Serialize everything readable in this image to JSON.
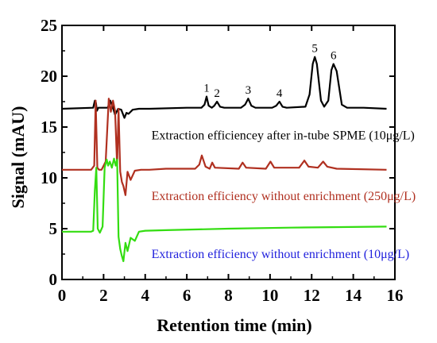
{
  "chart_data": {
    "type": "line",
    "xlabel": "Retention time (min)",
    "ylabel": "Signal (mAU)",
    "xlim": [
      0,
      16
    ],
    "ylim": [
      0,
      25
    ],
    "x_ticks": [
      0,
      2,
      4,
      6,
      8,
      10,
      12,
      14,
      16
    ],
    "y_ticks": [
      0,
      5,
      10,
      15,
      20,
      25
    ],
    "grid": false,
    "legend": "none",
    "series": [
      {
        "color": "#000000",
        "x": [
          0,
          1.5,
          1.58,
          1.63,
          1.68,
          1.75,
          1.85,
          2.0,
          2.2,
          2.32,
          2.45,
          2.55,
          2.7,
          2.85,
          3.0,
          3.1,
          3.2,
          3.4,
          3.7,
          4.2,
          6.0,
          6.7,
          6.85,
          6.95,
          7.05,
          7.2,
          7.32,
          7.45,
          7.6,
          7.8,
          8.6,
          8.8,
          8.95,
          9.1,
          9.3,
          10.1,
          10.3,
          10.45,
          10.6,
          10.8,
          11.7,
          11.9,
          12.05,
          12.15,
          12.25,
          12.45,
          12.6,
          12.8,
          12.95,
          13.05,
          13.2,
          13.45,
          13.7,
          14.5,
          15.6
        ],
        "y": [
          16.8,
          16.9,
          17.6,
          17.4,
          16.6,
          16.9,
          16.9,
          16.9,
          16.9,
          17.6,
          16.9,
          16.2,
          16.8,
          16.7,
          15.9,
          16.4,
          16.3,
          16.7,
          16.8,
          16.8,
          16.9,
          16.9,
          17.2,
          18.0,
          17.1,
          16.9,
          17.1,
          17.5,
          17.0,
          16.9,
          16.9,
          17.2,
          17.8,
          17.1,
          16.9,
          16.9,
          17.1,
          17.5,
          17.0,
          16.9,
          17.0,
          18.2,
          21.2,
          21.9,
          21.2,
          17.6,
          17.0,
          17.6,
          20.6,
          21.2,
          20.5,
          17.2,
          16.9,
          16.9,
          16.8
        ]
      },
      {
        "color": "#b03020",
        "x": [
          0,
          1.4,
          1.55,
          1.62,
          1.7,
          1.78,
          1.9,
          2.1,
          2.25,
          2.35,
          2.45,
          2.55,
          2.65,
          2.72,
          2.8,
          2.88,
          2.95,
          3.05,
          3.15,
          3.3,
          3.5,
          3.8,
          4.2,
          5.0,
          6.4,
          6.6,
          6.72,
          6.9,
          7.1,
          7.22,
          7.35,
          8.5,
          8.68,
          8.85,
          9.8,
          10.02,
          10.2,
          11.4,
          11.65,
          11.85,
          12.3,
          12.55,
          12.75,
          13.2,
          15.6
        ],
        "y": [
          10.8,
          10.8,
          11.2,
          17.6,
          11.0,
          10.8,
          10.8,
          11.6,
          17.8,
          16.5,
          17.6,
          16.6,
          11.2,
          16.8,
          10.6,
          9.6,
          9.2,
          8.3,
          10.6,
          9.8,
          10.7,
          10.8,
          10.8,
          10.9,
          10.9,
          11.3,
          12.2,
          11.1,
          10.9,
          11.5,
          11.0,
          10.9,
          11.5,
          11.0,
          10.9,
          11.6,
          11.0,
          11.0,
          11.7,
          11.1,
          11.0,
          11.6,
          11.1,
          10.9,
          10.8
        ]
      },
      {
        "color": "#33dd11",
        "x": [
          0,
          1.4,
          1.5,
          1.58,
          1.65,
          1.72,
          1.82,
          1.95,
          2.05,
          2.15,
          2.22,
          2.3,
          2.4,
          2.5,
          2.58,
          2.65,
          2.72,
          2.8,
          2.88,
          2.95,
          3.05,
          3.15,
          3.3,
          3.5,
          3.7,
          4.0,
          5.0,
          8.0,
          11.0,
          13.0,
          15.6
        ],
        "y": [
          4.7,
          4.7,
          4.8,
          8.8,
          11.0,
          5.0,
          4.6,
          5.2,
          11.0,
          11.8,
          11.2,
          11.6,
          11.0,
          11.9,
          11.2,
          11.8,
          4.2,
          3.0,
          2.3,
          1.8,
          3.6,
          2.8,
          4.1,
          3.8,
          4.7,
          4.8,
          4.85,
          5.0,
          5.1,
          5.15,
          5.2
        ]
      }
    ],
    "peak_labels": [
      {
        "text": "1",
        "x": 6.95,
        "y": 18.0
      },
      {
        "text": "2",
        "x": 7.45,
        "y": 17.5
      },
      {
        "text": "3",
        "x": 8.95,
        "y": 17.8
      },
      {
        "text": "4",
        "x": 10.45,
        "y": 17.5
      },
      {
        "text": "5",
        "x": 12.15,
        "y": 21.9
      },
      {
        "text": "6",
        "x": 13.05,
        "y": 21.2
      }
    ],
    "annotations": [
      {
        "text": "Extraction efficiencey after in-tube SPME (10μg/L)",
        "x": 4.3,
        "y": 13.8,
        "color": "#000000"
      },
      {
        "text": "Extraction efficiency without enrichment (250μg/L)",
        "x": 4.3,
        "y": 7.8,
        "color": "#b03020"
      },
      {
        "text": "Extraction efficiency without enrichment (10μg/L)",
        "x": 4.3,
        "y": 2.1,
        "color": "#2222dd"
      }
    ]
  }
}
